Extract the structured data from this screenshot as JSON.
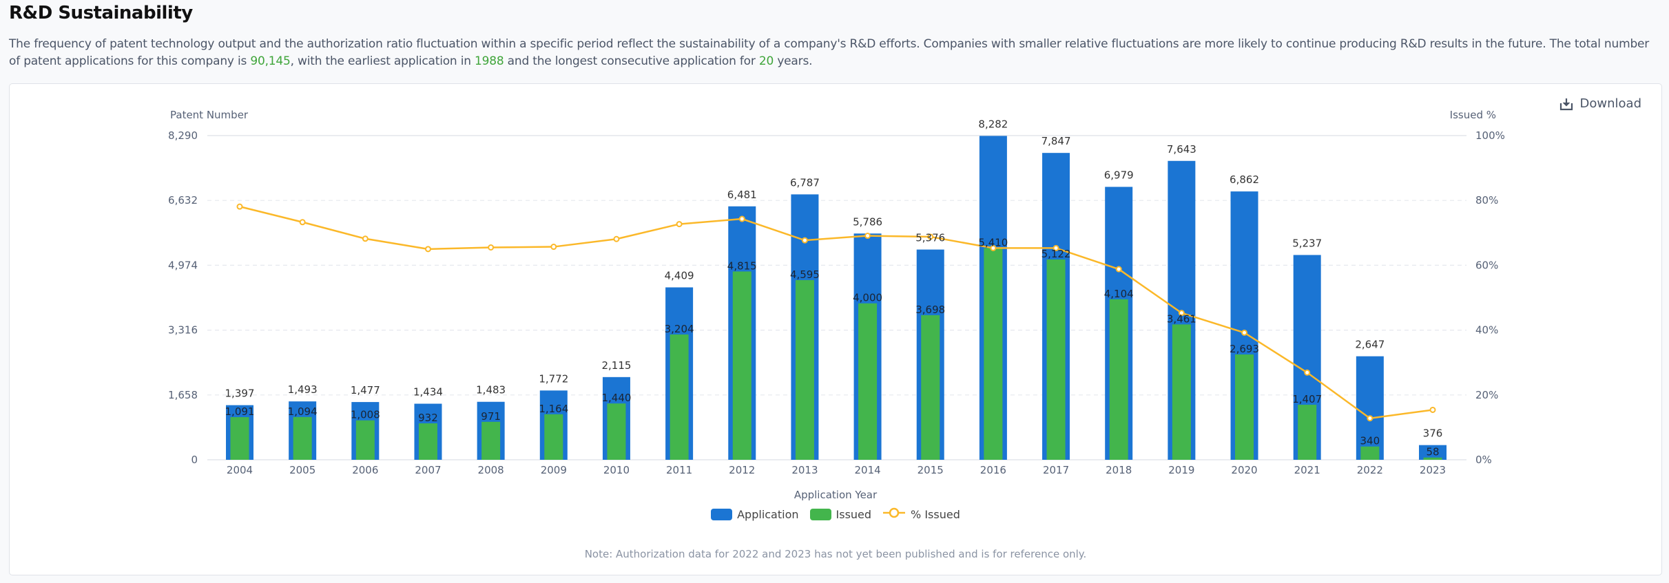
{
  "header": {
    "title": "R&D Sustainability",
    "description_parts": [
      "The frequency of patent technology output and the authorization ratio fluctuation within a specific period reflect the sustainability of a company's R&D efforts. Companies with smaller relative fluctuations are more likely to continue producing R&D results in the future. The total number of patent applications for this company is ",
      "90,145",
      ", with the earliest application in ",
      "1988",
      " and the longest consecutive application for ",
      "20",
      " years."
    ]
  },
  "toolbar": {
    "download_label": "Download",
    "download_icon": "download-icon"
  },
  "colors": {
    "application": "#1b75d3",
    "issued": "#43b54c",
    "percent_line": "#fbb829",
    "highlight": "#3fa53a"
  },
  "note": "Note: Authorization data for 2022 and 2023 has not yet been published and is for reference only.",
  "chart_data": {
    "type": "bar",
    "title": "R&D Sustainability",
    "xlabel": "Application Year",
    "ylabel": "Patent Number",
    "ylabel_right": "Issued %",
    "ylim": [
      0,
      8290
    ],
    "ylim_right": [
      0,
      100
    ],
    "yticks": [
      "0",
      "1,658",
      "3,316",
      "4,974",
      "6,632",
      "8,290"
    ],
    "yticks_right": [
      "0%",
      "20%",
      "40%",
      "60%",
      "80%",
      "100%"
    ],
    "grid": true,
    "legend_position": "bottom",
    "categories": [
      "2004",
      "2005",
      "2006",
      "2007",
      "2008",
      "2009",
      "2010",
      "2011",
      "2012",
      "2013",
      "2014",
      "2015",
      "2016",
      "2017",
      "2018",
      "2019",
      "2020",
      "2021",
      "2022",
      "2023"
    ],
    "series": [
      {
        "name": "Application",
        "type": "bar",
        "axis": "left",
        "values": [
          1397,
          1493,
          1477,
          1434,
          1483,
          1772,
          2115,
          4409,
          6481,
          6787,
          5786,
          5376,
          8282,
          7847,
          6979,
          7643,
          6862,
          5237,
          2647,
          376
        ]
      },
      {
        "name": "Issued",
        "type": "bar",
        "axis": "left",
        "values": [
          1091,
          1094,
          1008,
          932,
          971,
          1164,
          1440,
          3204,
          4815,
          4595,
          4000,
          3698,
          5410,
          5122,
          4104,
          3461,
          2693,
          1407,
          340,
          58
        ]
      },
      {
        "name": "% Issued",
        "type": "line",
        "axis": "right",
        "values": [
          78.1,
          73.3,
          68.2,
          65.0,
          65.5,
          65.7,
          68.1,
          72.7,
          74.3,
          67.7,
          69.1,
          68.8,
          65.3,
          65.3,
          58.8,
          45.3,
          39.2,
          26.9,
          12.8,
          15.4
        ]
      }
    ]
  }
}
